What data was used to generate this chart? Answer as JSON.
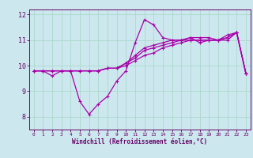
{
  "xlabel": "Windchill (Refroidissement éolien,°C)",
  "background_color": "#cce8ee",
  "grid_color": "#aad8cc",
  "line_color": "#aa00aa",
  "x": [
    0,
    1,
    2,
    3,
    4,
    5,
    6,
    7,
    8,
    9,
    10,
    11,
    12,
    13,
    14,
    15,
    16,
    17,
    18,
    19,
    20,
    21,
    22,
    23
  ],
  "line1": [
    9.8,
    9.8,
    9.6,
    9.8,
    9.8,
    8.6,
    8.1,
    8.5,
    8.8,
    9.4,
    9.8,
    10.9,
    11.8,
    11.6,
    11.1,
    11.0,
    11.0,
    11.1,
    10.9,
    11.0,
    11.0,
    11.1,
    11.3,
    9.7
  ],
  "line2": [
    9.8,
    9.8,
    9.8,
    9.8,
    9.8,
    9.8,
    9.8,
    9.8,
    9.9,
    9.9,
    10.0,
    10.2,
    10.4,
    10.5,
    10.7,
    10.8,
    10.9,
    11.0,
    11.0,
    11.0,
    11.0,
    11.0,
    11.3,
    9.7
  ],
  "line3": [
    9.8,
    9.8,
    9.8,
    9.8,
    9.8,
    9.8,
    9.8,
    9.8,
    9.9,
    9.9,
    10.1,
    10.3,
    10.6,
    10.7,
    10.8,
    10.9,
    11.0,
    11.0,
    11.0,
    11.0,
    11.0,
    11.1,
    11.3,
    9.7
  ],
  "line4": [
    9.8,
    9.8,
    9.8,
    9.8,
    9.8,
    9.8,
    9.8,
    9.8,
    9.9,
    9.9,
    10.1,
    10.4,
    10.7,
    10.8,
    10.9,
    11.0,
    11.0,
    11.1,
    11.1,
    11.1,
    11.0,
    11.2,
    11.3,
    9.7
  ],
  "ylim": [
    7.5,
    12.2
  ],
  "yticks": [
    8,
    9,
    10,
    11,
    12
  ],
  "xticks": [
    0,
    1,
    2,
    3,
    4,
    5,
    6,
    7,
    8,
    9,
    10,
    11,
    12,
    13,
    14,
    15,
    16,
    17,
    18,
    19,
    20,
    21,
    22,
    23
  ],
  "xlim": [
    -0.5,
    23.5
  ]
}
